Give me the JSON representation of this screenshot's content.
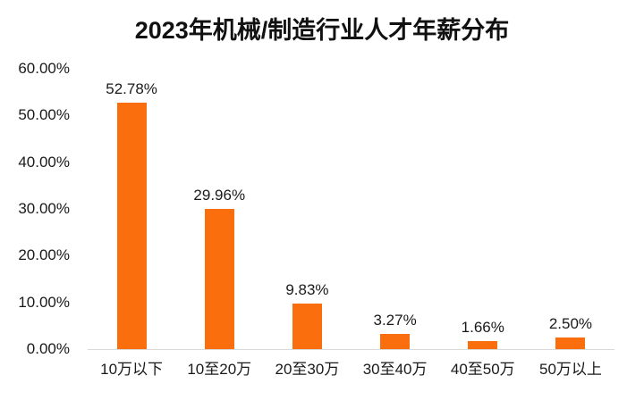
{
  "chart_data": {
    "type": "bar",
    "title": "2023年机械/制造行业人才年薪分布",
    "categories": [
      "10万以下",
      "10至20万",
      "20至30万",
      "30至40万",
      "40至50万",
      "50万以上"
    ],
    "values": [
      52.78,
      29.96,
      9.83,
      3.27,
      1.66,
      2.5
    ],
    "data_labels": [
      "52.78%",
      "29.96%",
      "9.83%",
      "3.27%",
      "1.66%",
      "2.50%"
    ],
    "y_ticks": [
      "60.00%",
      "50.00%",
      "40.00%",
      "30.00%",
      "20.00%",
      "10.00%",
      "0.00%"
    ],
    "xlabel": "",
    "ylabel": "",
    "ylim": [
      0,
      60
    ],
    "grid": false,
    "legend": false,
    "bar_color": "#FA6E0D",
    "axis_line_color": "#D9D9D9",
    "text_color": "#1A1A1A",
    "background_color": "#FFFFFF"
  }
}
